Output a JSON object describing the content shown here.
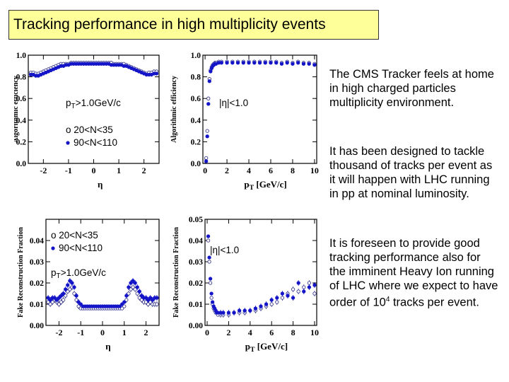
{
  "slide": {
    "title": "Tracking performance in high multiplicity events",
    "paragraphs": [
      {
        "text": "The CMS Tracker feels at home in high charged particles multiplicity environment."
      },
      {
        "text": "It has been designed to tackle thousand of tracks per event as it will happen with LHC running in pp at nominal luminosity."
      },
      {
        "pre": "It is foreseen to provide good tracking performance also for the imminent  Heavy Ion running of LHC where we expect to have order of 10",
        "sup": "4",
        "post": " tracks per event."
      }
    ]
  },
  "colors": {
    "open_series": "#3a3a8c",
    "filled_series": "#1515c8",
    "title_bg": "#ffff99"
  },
  "chart_data": [
    {
      "type": "scatter",
      "id": "eff_eta",
      "ylabel": "Algorithmic efficiency",
      "xlabel": "η",
      "xlim": [
        -2.6,
        2.6
      ],
      "ylim": [
        0,
        1.0
      ],
      "xticks": [
        -2,
        -1,
        0,
        1,
        2
      ],
      "yticks": [
        0,
        0.2,
        0.4,
        0.6,
        0.8,
        1.0
      ],
      "ytick_labels": [
        "0.0",
        "0.2",
        "0.4",
        "0.6",
        "0.8",
        "1.0"
      ],
      "annotations": [
        "p_T>1.0GeV/c",
        "o 20<N<35",
        "90<N<110"
      ],
      "series": [
        {
          "name": "20<N<35",
          "marker": "open",
          "x": [
            -2.5,
            -2.4,
            -2.3,
            -2.2,
            -2.1,
            -2.0,
            -1.9,
            -1.8,
            -1.7,
            -1.6,
            -1.5,
            -1.4,
            -1.3,
            -1.2,
            -1.1,
            -1.0,
            -0.9,
            -0.8,
            -0.7,
            -0.6,
            -0.5,
            -0.4,
            -0.3,
            -0.2,
            -0.1,
            0.0,
            0.1,
            0.2,
            0.3,
            0.4,
            0.5,
            0.6,
            0.7,
            0.8,
            0.9,
            1.0,
            1.1,
            1.2,
            1.3,
            1.4,
            1.5,
            1.6,
            1.7,
            1.8,
            1.9,
            2.0,
            2.1,
            2.2,
            2.3,
            2.4,
            2.5
          ],
          "y": [
            0.84,
            0.84,
            0.83,
            0.83,
            0.84,
            0.85,
            0.86,
            0.87,
            0.88,
            0.89,
            0.9,
            0.91,
            0.92,
            0.92,
            0.92,
            0.92,
            0.93,
            0.93,
            0.93,
            0.93,
            0.93,
            0.93,
            0.93,
            0.93,
            0.93,
            0.93,
            0.93,
            0.93,
            0.93,
            0.93,
            0.93,
            0.93,
            0.93,
            0.92,
            0.92,
            0.92,
            0.92,
            0.92,
            0.91,
            0.9,
            0.89,
            0.88,
            0.87,
            0.86,
            0.85,
            0.84,
            0.83,
            0.84,
            0.84,
            0.85,
            0.85
          ]
        },
        {
          "name": "90<N<110",
          "marker": "filled",
          "x": [
            -2.5,
            -2.4,
            -2.3,
            -2.2,
            -2.1,
            -2.0,
            -1.9,
            -1.8,
            -1.7,
            -1.6,
            -1.5,
            -1.4,
            -1.3,
            -1.2,
            -1.1,
            -1.0,
            -0.9,
            -0.8,
            -0.7,
            -0.6,
            -0.5,
            -0.4,
            -0.3,
            -0.2,
            -0.1,
            0.0,
            0.1,
            0.2,
            0.3,
            0.4,
            0.5,
            0.6,
            0.7,
            0.8,
            0.9,
            1.0,
            1.1,
            1.2,
            1.3,
            1.4,
            1.5,
            1.6,
            1.7,
            1.8,
            1.9,
            2.0,
            2.1,
            2.2,
            2.3,
            2.4,
            2.5
          ],
          "y": [
            0.82,
            0.82,
            0.81,
            0.81,
            0.82,
            0.83,
            0.84,
            0.85,
            0.86,
            0.87,
            0.88,
            0.89,
            0.9,
            0.9,
            0.91,
            0.91,
            0.92,
            0.92,
            0.92,
            0.92,
            0.92,
            0.92,
            0.92,
            0.92,
            0.92,
            0.92,
            0.92,
            0.92,
            0.92,
            0.92,
            0.92,
            0.92,
            0.91,
            0.91,
            0.91,
            0.91,
            0.91,
            0.9,
            0.9,
            0.89,
            0.88,
            0.87,
            0.86,
            0.85,
            0.84,
            0.83,
            0.82,
            0.82,
            0.82,
            0.83,
            0.83
          ]
        }
      ]
    },
    {
      "type": "scatter",
      "id": "eff_pt",
      "ylabel": "Algorithmic efficiency",
      "xlabel": "p_T [GeV/c]",
      "xlim": [
        -0.2,
        10.2
      ],
      "ylim": [
        0,
        1.0
      ],
      "xticks": [
        0,
        2,
        4,
        6,
        8,
        10
      ],
      "yticks": [
        0,
        0.2,
        0.4,
        0.6,
        0.8,
        1.0
      ],
      "ytick_labels": [
        "0.0",
        "0.2",
        "0.4",
        "0.6",
        "0.8",
        "1.0"
      ],
      "annotations": [
        "|η|<1.0"
      ],
      "series": [
        {
          "name": "20<N<35",
          "marker": "open",
          "x": [
            0.1,
            0.2,
            0.3,
            0.4,
            0.5,
            0.6,
            0.7,
            0.8,
            0.9,
            1.0,
            1.25,
            1.5,
            2.0,
            2.5,
            3.0,
            3.5,
            4.0,
            4.5,
            5.0,
            5.5,
            6.0,
            6.5,
            7.0,
            7.5,
            8.0,
            8.5,
            9.0,
            9.5,
            10.0
          ],
          "y": [
            0.05,
            0.3,
            0.6,
            0.78,
            0.86,
            0.89,
            0.91,
            0.92,
            0.93,
            0.93,
            0.94,
            0.94,
            0.94,
            0.94,
            0.94,
            0.94,
            0.94,
            0.94,
            0.94,
            0.94,
            0.94,
            0.94,
            0.93,
            0.94,
            0.93,
            0.94,
            0.93,
            0.93,
            0.92
          ]
        },
        {
          "name": "90<N<110",
          "marker": "filled",
          "x": [
            0.1,
            0.2,
            0.3,
            0.4,
            0.5,
            0.6,
            0.7,
            0.8,
            0.9,
            1.0,
            1.25,
            1.5,
            2.0,
            2.5,
            3.0,
            3.5,
            4.0,
            4.5,
            5.0,
            5.5,
            6.0,
            6.5,
            7.0,
            7.5,
            8.0,
            8.5,
            9.0,
            9.5,
            10.0
          ],
          "y": [
            0.02,
            0.25,
            0.55,
            0.76,
            0.85,
            0.88,
            0.9,
            0.91,
            0.92,
            0.92,
            0.93,
            0.93,
            0.93,
            0.93,
            0.93,
            0.93,
            0.93,
            0.93,
            0.93,
            0.93,
            0.93,
            0.93,
            0.92,
            0.93,
            0.92,
            0.93,
            0.92,
            0.92,
            0.91
          ]
        }
      ]
    },
    {
      "type": "scatter",
      "id": "fake_eta",
      "ylabel": "Fake Reconstruction Fraction",
      "xlabel": "η",
      "xlim": [
        -2.6,
        2.6
      ],
      "ylim": [
        0,
        0.05
      ],
      "xticks": [
        -2,
        -1,
        0,
        1,
        2
      ],
      "yticks": [
        0,
        0.01,
        0.02,
        0.03,
        0.04
      ],
      "ytick_labels": [
        "0.00",
        "0.01",
        "0.02",
        "0.03",
        "0.04"
      ],
      "annotations": [
        "o 20<N<35",
        "90<N<110",
        "p_T>1.0GeV/c"
      ],
      "series": [
        {
          "name": "20<N<35",
          "marker": "open",
          "x": [
            -2.5,
            -2.4,
            -2.3,
            -2.2,
            -2.1,
            -2.0,
            -1.9,
            -1.8,
            -1.7,
            -1.6,
            -1.5,
            -1.4,
            -1.3,
            -1.2,
            -1.1,
            -1.0,
            -0.9,
            -0.8,
            -0.7,
            -0.6,
            -0.5,
            -0.4,
            -0.3,
            -0.2,
            -0.1,
            0.0,
            0.1,
            0.2,
            0.3,
            0.4,
            0.5,
            0.6,
            0.7,
            0.8,
            0.9,
            1.0,
            1.1,
            1.2,
            1.3,
            1.4,
            1.5,
            1.6,
            1.7,
            1.8,
            1.9,
            2.0,
            2.1,
            2.2,
            2.3,
            2.4,
            2.5
          ],
          "y": [
            0.011,
            0.01,
            0.011,
            0.012,
            0.011,
            0.01,
            0.011,
            0.012,
            0.014,
            0.016,
            0.017,
            0.018,
            0.015,
            0.012,
            0.009,
            0.008,
            0.008,
            0.008,
            0.008,
            0.008,
            0.008,
            0.008,
            0.008,
            0.008,
            0.008,
            0.008,
            0.008,
            0.008,
            0.008,
            0.008,
            0.008,
            0.008,
            0.008,
            0.008,
            0.008,
            0.009,
            0.012,
            0.015,
            0.017,
            0.018,
            0.017,
            0.015,
            0.013,
            0.012,
            0.011,
            0.011,
            0.01,
            0.011,
            0.01,
            0.01,
            0.01
          ]
        },
        {
          "name": "90<N<110",
          "marker": "filled",
          "x": [
            -2.5,
            -2.4,
            -2.3,
            -2.2,
            -2.1,
            -2.0,
            -1.9,
            -1.8,
            -1.7,
            -1.6,
            -1.5,
            -1.4,
            -1.3,
            -1.2,
            -1.1,
            -1.0,
            -0.9,
            -0.8,
            -0.7,
            -0.6,
            -0.5,
            -0.4,
            -0.3,
            -0.2,
            -0.1,
            0.0,
            0.1,
            0.2,
            0.3,
            0.4,
            0.5,
            0.6,
            0.7,
            0.8,
            0.9,
            1.0,
            1.1,
            1.2,
            1.3,
            1.4,
            1.5,
            1.6,
            1.7,
            1.8,
            1.9,
            2.0,
            2.1,
            2.2,
            2.3,
            2.4,
            2.5
          ],
          "y": [
            0.013,
            0.012,
            0.013,
            0.013,
            0.012,
            0.013,
            0.014,
            0.015,
            0.017,
            0.019,
            0.021,
            0.02,
            0.018,
            0.014,
            0.011,
            0.01,
            0.009,
            0.009,
            0.009,
            0.009,
            0.009,
            0.009,
            0.009,
            0.009,
            0.009,
            0.009,
            0.009,
            0.009,
            0.009,
            0.009,
            0.009,
            0.009,
            0.009,
            0.009,
            0.01,
            0.011,
            0.014,
            0.018,
            0.02,
            0.021,
            0.02,
            0.018,
            0.016,
            0.014,
            0.013,
            0.013,
            0.012,
            0.013,
            0.012,
            0.013,
            0.013
          ]
        }
      ]
    },
    {
      "type": "scatter",
      "id": "fake_pt",
      "ylabel": "Fake Reconstruction Fraction",
      "xlabel": "p_T [GeV/c]",
      "xlim": [
        -0.2,
        10.2
      ],
      "ylim": [
        0,
        0.05
      ],
      "xticks": [
        0,
        2,
        4,
        6,
        8,
        10
      ],
      "yticks": [
        0,
        0.01,
        0.02,
        0.03,
        0.04,
        0.05
      ],
      "ytick_labels": [
        "0.00",
        "0.01",
        "0.02",
        "0.03",
        "0.04",
        "0.05"
      ],
      "annotations": [
        "|η|<1.0"
      ],
      "series": [
        {
          "name": "20<N<35",
          "marker": "open",
          "x": [
            0.1,
            0.2,
            0.3,
            0.4,
            0.5,
            0.6,
            0.7,
            0.8,
            0.9,
            1.0,
            1.25,
            1.5,
            2.0,
            2.5,
            3.0,
            3.5,
            4.0,
            4.5,
            5.0,
            5.5,
            6.0,
            6.5,
            7.0,
            7.5,
            8.0,
            8.5,
            9.0,
            9.5,
            10.0
          ],
          "y": [
            0.04,
            0.03,
            0.02,
            0.013,
            0.01,
            0.008,
            0.007,
            0.006,
            0.006,
            0.005,
            0.005,
            0.005,
            0.005,
            0.006,
            0.006,
            0.006,
            0.007,
            0.007,
            0.008,
            0.009,
            0.01,
            0.011,
            0.013,
            0.015,
            0.017,
            0.016,
            0.018,
            0.02,
            0.015
          ]
        },
        {
          "name": "90<N<110",
          "marker": "filled",
          "x": [
            0.1,
            0.2,
            0.3,
            0.4,
            0.5,
            0.6,
            0.7,
            0.8,
            0.9,
            1.0,
            1.25,
            1.5,
            2.0,
            2.5,
            3.0,
            3.5,
            4.0,
            4.5,
            5.0,
            5.5,
            6.0,
            6.5,
            7.0,
            7.5,
            8.0,
            8.5,
            9.0,
            9.5,
            10.0
          ],
          "y": [
            0.042,
            0.032,
            0.022,
            0.015,
            0.011,
            0.009,
            0.008,
            0.007,
            0.006,
            0.006,
            0.006,
            0.006,
            0.006,
            0.006,
            0.007,
            0.007,
            0.007,
            0.008,
            0.009,
            0.01,
            0.012,
            0.013,
            0.015,
            0.014,
            0.013,
            0.02,
            0.016,
            0.018,
            0.019
          ]
        }
      ]
    }
  ]
}
